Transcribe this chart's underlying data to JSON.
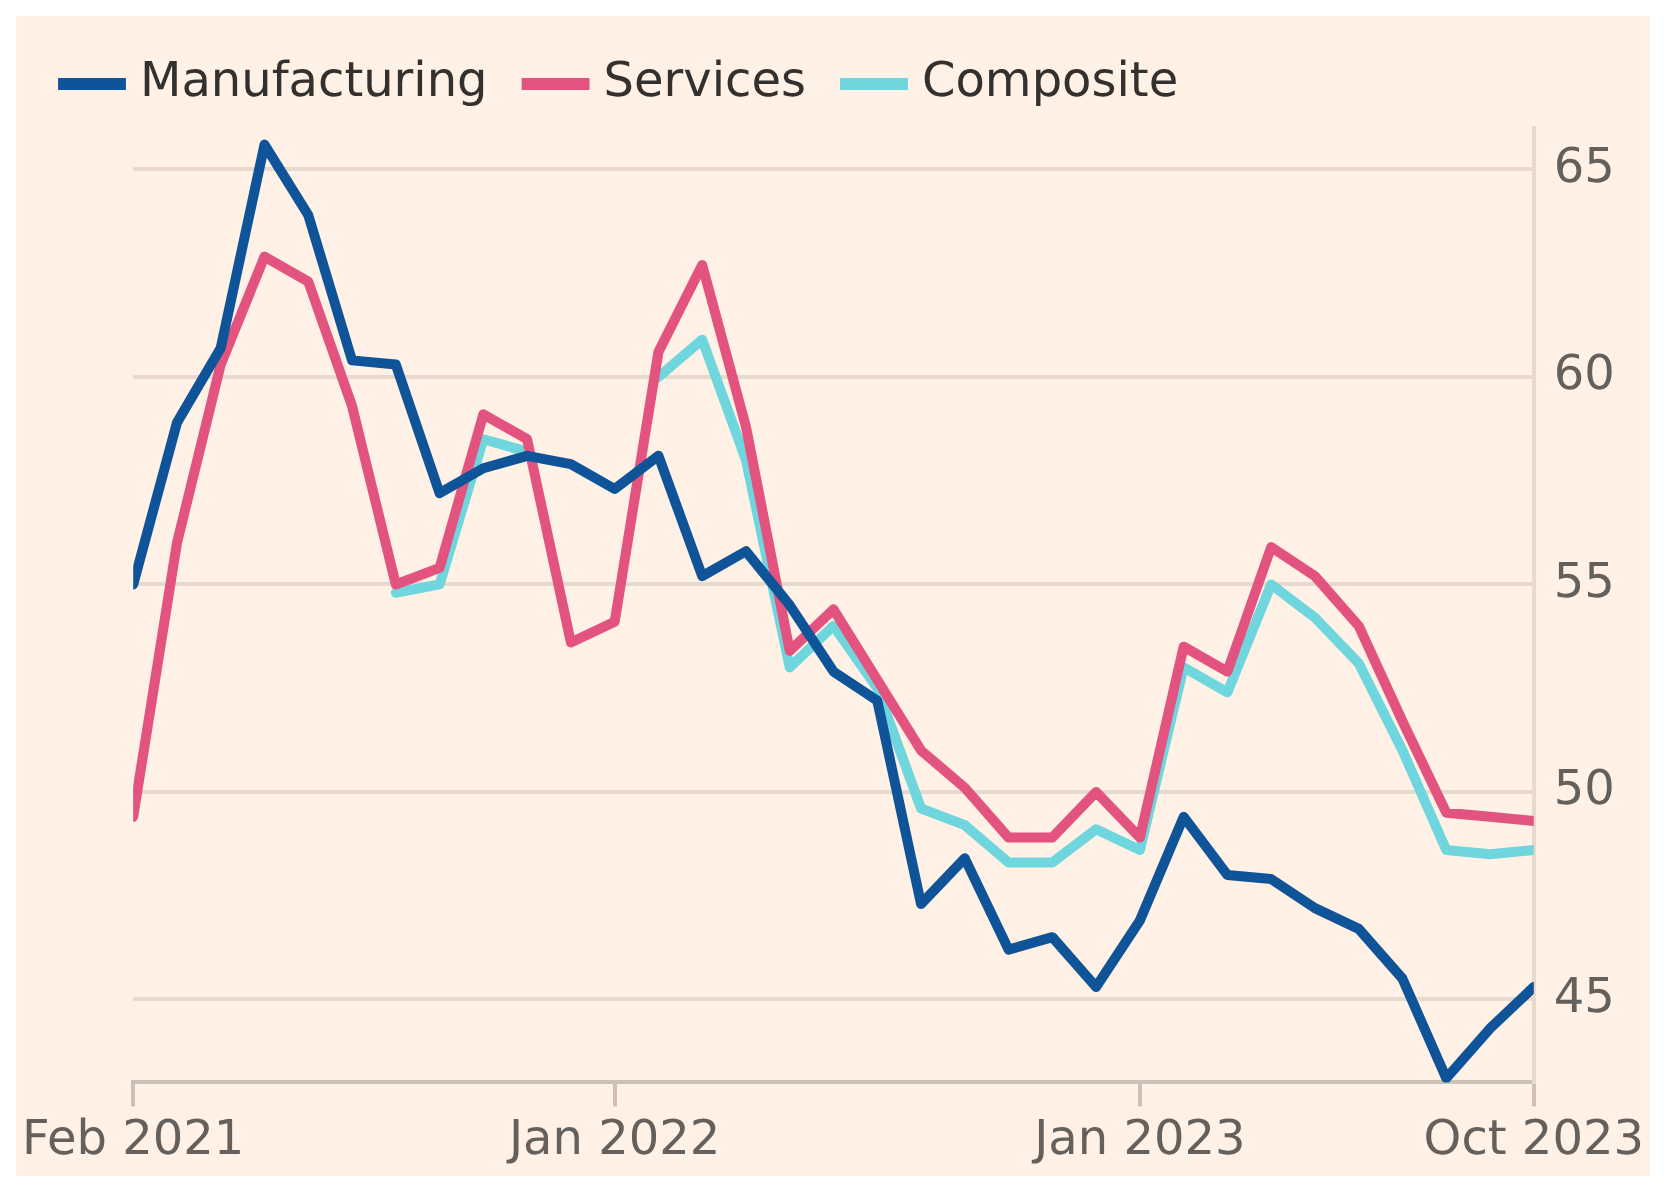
{
  "chart_data": {
    "type": "line",
    "x": [
      "2021-02",
      "2021-03",
      "2021-04",
      "2021-05",
      "2021-06",
      "2021-07",
      "2021-08",
      "2021-09",
      "2021-10",
      "2021-11",
      "2021-12",
      "2022-01",
      "2022-02",
      "2022-03",
      "2022-04",
      "2022-05",
      "2022-06",
      "2022-07",
      "2022-08",
      "2022-09",
      "2022-10",
      "2022-11",
      "2022-12",
      "2023-01",
      "2023-02",
      "2023-03",
      "2023-04",
      "2023-05",
      "2023-06",
      "2023-07",
      "2023-08",
      "2023-09",
      "2023-10"
    ],
    "series": [
      {
        "name": "Manufacturing",
        "color": "#0f5499",
        "values": [
          55.0,
          58.9,
          60.7,
          65.6,
          63.9,
          60.4,
          60.3,
          57.2,
          57.8,
          58.1,
          57.9,
          57.3,
          58.1,
          55.2,
          55.8,
          54.5,
          52.9,
          52.2,
          47.3,
          48.4,
          46.2,
          46.5,
          45.3,
          46.9,
          49.4,
          48.0,
          47.9,
          47.2,
          46.7,
          45.5,
          43.1,
          44.3,
          45.3
        ]
      },
      {
        "name": "Services",
        "color": "#e3537f",
        "values": [
          49.4,
          56.0,
          60.3,
          62.9,
          62.3,
          59.3,
          55.0,
          55.4,
          59.1,
          58.5,
          53.6,
          54.1,
          60.6,
          62.7,
          58.8,
          53.4,
          54.4,
          52.7,
          51.0,
          50.1,
          48.9,
          48.9,
          50.0,
          48.9,
          53.5,
          52.9,
          55.9,
          55.2,
          54.0,
          51.7,
          49.5,
          49.4,
          49.3
        ]
      },
      {
        "name": "Composite",
        "color": "#6fd6de",
        "values": [
          null,
          null,
          null,
          null,
          null,
          null,
          54.8,
          55.0,
          58.5,
          58.2,
          null,
          null,
          60.0,
          60.9,
          58.0,
          53.0,
          54.0,
          52.5,
          49.6,
          49.2,
          48.3,
          48.3,
          49.1,
          48.6,
          53.0,
          52.4,
          55.0,
          54.2,
          53.1,
          51.0,
          48.6,
          48.5,
          48.6
        ]
      }
    ],
    "xlim": [
      "2021-02",
      "2023-10"
    ],
    "xticks": [
      {
        "value": "2021-02",
        "label": "Feb 2021"
      },
      {
        "value": "2022-01",
        "label": "Jan 2022"
      },
      {
        "value": "2023-01",
        "label": "Jan 2023"
      },
      {
        "value": "2023-10",
        "label": "Oct 2023"
      }
    ],
    "ylim": [
      43,
      66
    ],
    "yticks": [
      45,
      50,
      55,
      60,
      65
    ],
    "grid": "y",
    "legend": "top left",
    "marker": "none",
    "line_style": "solid"
  }
}
